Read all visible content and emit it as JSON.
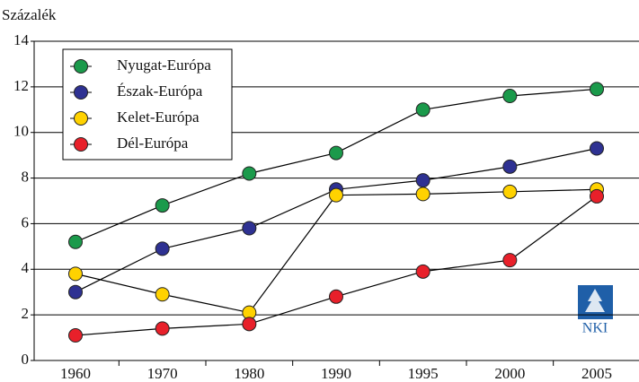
{
  "chart_data": {
    "type": "line",
    "y_label": "Százalék",
    "categories": [
      "1960",
      "1970",
      "1980",
      "1990",
      "1995",
      "2000",
      "2005"
    ],
    "series": [
      {
        "name": "Nyugat-Európa",
        "color": "#1b9a4b",
        "values": [
          5.2,
          6.8,
          8.2,
          9.1,
          11.0,
          11.6,
          11.9
        ]
      },
      {
        "name": "Észak-Európa",
        "color": "#2e3192",
        "values": [
          3.0,
          4.9,
          5.8,
          7.5,
          7.9,
          8.5,
          9.3
        ]
      },
      {
        "name": "Kelet-Európa",
        "color": "#ffd200",
        "values": [
          3.8,
          2.9,
          2.1,
          7.25,
          7.3,
          7.4,
          7.5
        ]
      },
      {
        "name": "Dél-Európa",
        "color": "#e8202a",
        "values": [
          1.1,
          1.4,
          1.6,
          2.8,
          3.9,
          4.4,
          7.2
        ]
      }
    ],
    "ylim": [
      0,
      14
    ],
    "yticks": [
      0,
      2,
      4,
      6,
      8,
      10,
      12,
      14
    ],
    "grid": true,
    "legend": "upper left",
    "logo": "NKI"
  }
}
